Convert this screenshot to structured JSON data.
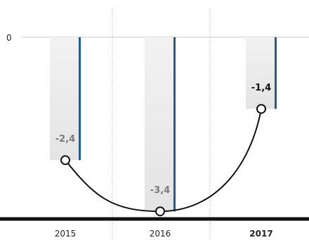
{
  "chart_data": {
    "type": "bar",
    "title": "",
    "xlabel": "",
    "ylabel": "",
    "categories": [
      "2015",
      "2016",
      "2017"
    ],
    "values": [
      -2.4,
      -3.4,
      -1.4
    ],
    "value_labels": [
      "-2,4",
      "-3,4",
      "-1,4"
    ],
    "y_tick_label": "0",
    "ylim": [
      -3.6,
      0
    ],
    "highlight_category": "2017",
    "grid": "vertical dotted separators",
    "legend": "none",
    "colors": {
      "bar_fill_top": "#f2f2f2",
      "bar_fill_bottom": "#e4e4e4",
      "bar_edge": "#1f5f93",
      "curve": "#111111",
      "label_muted": "#7a7a7a",
      "label_highlight": "#111111",
      "baseline": "#111111"
    }
  }
}
